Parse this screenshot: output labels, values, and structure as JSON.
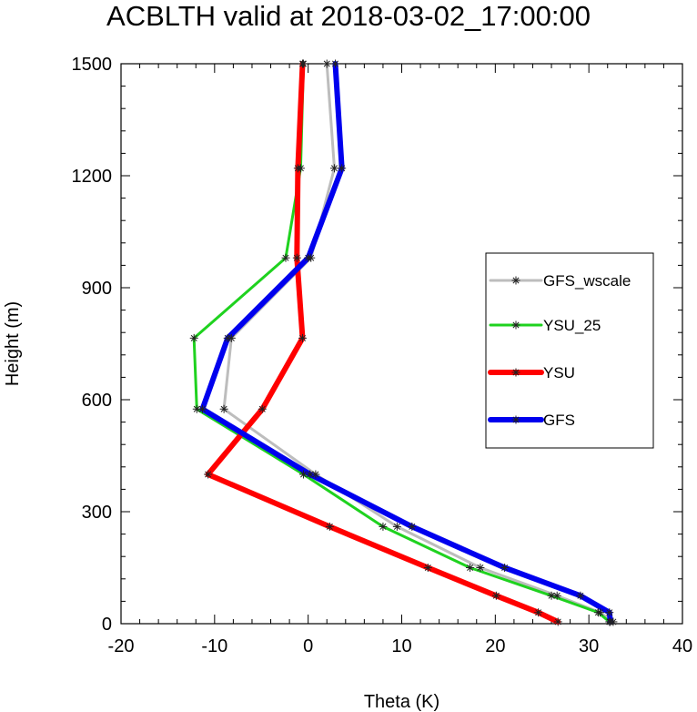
{
  "chart_data": {
    "type": "line",
    "title": "ACBLTH valid at 2018-03-02_17:00:00",
    "xlabel": "Theta (K)",
    "ylabel": "Height (m)",
    "xlim": [
      -20,
      40
    ],
    "ylim": [
      0,
      1500
    ],
    "x_ticks": [
      "-20",
      "-10",
      "0",
      "10",
      "20",
      "30",
      "40"
    ],
    "y_ticks": [
      "0",
      "300",
      "600",
      "900",
      "1200",
      "1500"
    ],
    "grid": false,
    "legend_placement": "right",
    "series": [
      {
        "name": "GFS_wscale",
        "color": "#bdbdbd",
        "width": 3,
        "points": [
          [
            32.6,
            5
          ],
          [
            31.2,
            30
          ],
          [
            26.6,
            75
          ],
          [
            18.4,
            150
          ],
          [
            9.5,
            260
          ],
          [
            0.8,
            400
          ],
          [
            -9.0,
            575
          ],
          [
            -8.2,
            765
          ],
          [
            0.3,
            980
          ],
          [
            2.8,
            1220
          ],
          [
            2.0,
            1500
          ]
        ]
      },
      {
        "name": "YSU_25",
        "color": "#1fd21f",
        "width": 3,
        "points": [
          [
            32.2,
            5
          ],
          [
            31.0,
            30
          ],
          [
            26.0,
            75
          ],
          [
            17.3,
            150
          ],
          [
            8.0,
            260
          ],
          [
            -0.5,
            400
          ],
          [
            -11.9,
            575
          ],
          [
            -12.2,
            765
          ],
          [
            -2.4,
            980
          ],
          [
            -0.8,
            1220
          ],
          [
            -0.5,
            1500
          ]
        ]
      },
      {
        "name": "YSU",
        "color": "#ff0000",
        "width": 6,
        "points": [
          [
            26.7,
            5
          ],
          [
            24.6,
            30
          ],
          [
            20.1,
            75
          ],
          [
            12.8,
            150
          ],
          [
            2.3,
            260
          ],
          [
            -10.7,
            400
          ],
          [
            -4.9,
            575
          ],
          [
            -0.6,
            765
          ],
          [
            -1.2,
            980
          ],
          [
            -1.1,
            1220
          ],
          [
            -0.6,
            1500
          ]
        ]
      },
      {
        "name": "GFS",
        "color": "#0000ee",
        "width": 6,
        "points": [
          [
            32.3,
            5
          ],
          [
            32.2,
            30
          ],
          [
            29.1,
            75
          ],
          [
            21.0,
            150
          ],
          [
            11.1,
            260
          ],
          [
            0.2,
            400
          ],
          [
            -11.3,
            575
          ],
          [
            -8.6,
            765
          ],
          [
            0.0,
            980
          ],
          [
            3.6,
            1220
          ],
          [
            2.9,
            1500
          ]
        ]
      }
    ]
  }
}
